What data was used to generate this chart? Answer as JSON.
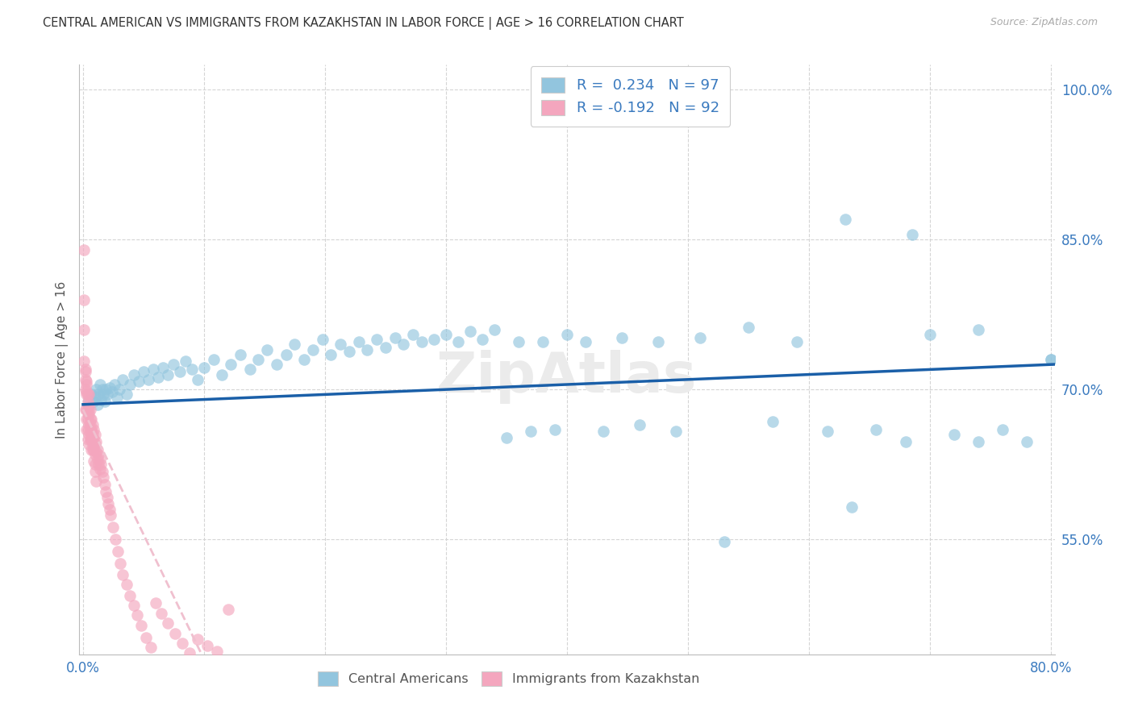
{
  "title": "CENTRAL AMERICAN VS IMMIGRANTS FROM KAZAKHSTAN IN LABOR FORCE | AGE > 16 CORRELATION CHART",
  "source": "Source: ZipAtlas.com",
  "ylabel": "In Labor Force | Age > 16",
  "x_min": -0.003,
  "x_max": 0.803,
  "y_min": 0.435,
  "y_max": 1.025,
  "y_ticks": [
    0.55,
    0.7,
    0.85,
    1.0
  ],
  "y_tick_labels": [
    "55.0%",
    "70.0%",
    "85.0%",
    "100.0%"
  ],
  "x_ticks": [
    0.0,
    0.1,
    0.2,
    0.3,
    0.4,
    0.5,
    0.6,
    0.7,
    0.8
  ],
  "x_tick_labels": [
    "0.0%",
    "",
    "",
    "",
    "",
    "",
    "",
    "",
    "80.0%"
  ],
  "color_blue": "#92c5de",
  "color_pink": "#f4a6be",
  "color_blue_line": "#1a5fa8",
  "color_pink_solid": "#e8607a",
  "color_pink_dash": "#f0c0cf",
  "watermark": "ZipAtlas",
  "blue_x": [
    0.005,
    0.007,
    0.009,
    0.01,
    0.011,
    0.012,
    0.013,
    0.014,
    0.015,
    0.016,
    0.017,
    0.018,
    0.019,
    0.02,
    0.022,
    0.024,
    0.026,
    0.028,
    0.03,
    0.033,
    0.036,
    0.039,
    0.042,
    0.046,
    0.05,
    0.054,
    0.058,
    0.062,
    0.066,
    0.07,
    0.075,
    0.08,
    0.085,
    0.09,
    0.095,
    0.1,
    0.108,
    0.115,
    0.122,
    0.13,
    0.138,
    0.145,
    0.152,
    0.16,
    0.168,
    0.175,
    0.183,
    0.19,
    0.198,
    0.205,
    0.213,
    0.22,
    0.228,
    0.235,
    0.243,
    0.25,
    0.258,
    0.265,
    0.273,
    0.28,
    0.29,
    0.3,
    0.31,
    0.32,
    0.33,
    0.34,
    0.35,
    0.36,
    0.37,
    0.38,
    0.39,
    0.4,
    0.415,
    0.43,
    0.445,
    0.46,
    0.475,
    0.49,
    0.51,
    0.53,
    0.55,
    0.57,
    0.59,
    0.615,
    0.635,
    0.655,
    0.68,
    0.7,
    0.72,
    0.74,
    0.76,
    0.78,
    0.8,
    0.63,
    0.685,
    0.74,
    0.8
  ],
  "blue_y": [
    0.69,
    0.695,
    0.688,
    0.693,
    0.7,
    0.685,
    0.695,
    0.705,
    0.69,
    0.7,
    0.695,
    0.688,
    0.7,
    0.695,
    0.702,
    0.698,
    0.705,
    0.692,
    0.7,
    0.71,
    0.695,
    0.705,
    0.715,
    0.708,
    0.718,
    0.71,
    0.72,
    0.712,
    0.722,
    0.715,
    0.725,
    0.718,
    0.728,
    0.72,
    0.71,
    0.722,
    0.73,
    0.715,
    0.725,
    0.735,
    0.72,
    0.73,
    0.74,
    0.725,
    0.735,
    0.745,
    0.73,
    0.74,
    0.75,
    0.735,
    0.745,
    0.738,
    0.748,
    0.74,
    0.75,
    0.742,
    0.752,
    0.745,
    0.755,
    0.748,
    0.75,
    0.755,
    0.748,
    0.758,
    0.75,
    0.76,
    0.652,
    0.748,
    0.658,
    0.748,
    0.66,
    0.755,
    0.748,
    0.658,
    0.752,
    0.665,
    0.748,
    0.658,
    0.752,
    0.548,
    0.762,
    0.668,
    0.748,
    0.658,
    0.582,
    0.66,
    0.648,
    0.755,
    0.655,
    0.648,
    0.66,
    0.648,
    0.73,
    0.87,
    0.855,
    0.76,
    0.73
  ],
  "pink_x": [
    0.001,
    0.001,
    0.001,
    0.002,
    0.002,
    0.002,
    0.002,
    0.003,
    0.003,
    0.003,
    0.003,
    0.003,
    0.004,
    0.004,
    0.004,
    0.004,
    0.004,
    0.005,
    0.005,
    0.005,
    0.005,
    0.005,
    0.005,
    0.006,
    0.006,
    0.006,
    0.006,
    0.007,
    0.007,
    0.007,
    0.007,
    0.008,
    0.008,
    0.008,
    0.009,
    0.009,
    0.009,
    0.01,
    0.01,
    0.01,
    0.01,
    0.011,
    0.011,
    0.012,
    0.012,
    0.013,
    0.013,
    0.014,
    0.014,
    0.015,
    0.016,
    0.017,
    0.018,
    0.019,
    0.02,
    0.021,
    0.022,
    0.023,
    0.025,
    0.027,
    0.029,
    0.031,
    0.033,
    0.036,
    0.039,
    0.042,
    0.045,
    0.048,
    0.052,
    0.056,
    0.06,
    0.065,
    0.07,
    0.076,
    0.082,
    0.088,
    0.095,
    0.103,
    0.111,
    0.12,
    0.001,
    0.002,
    0.003,
    0.003,
    0.004,
    0.005,
    0.006,
    0.007,
    0.008,
    0.009,
    0.01,
    0.011
  ],
  "pink_y": [
    0.84,
    0.79,
    0.76,
    0.72,
    0.71,
    0.7,
    0.68,
    0.705,
    0.695,
    0.68,
    0.67,
    0.66,
    0.695,
    0.68,
    0.67,
    0.66,
    0.65,
    0.695,
    0.685,
    0.675,
    0.665,
    0.655,
    0.645,
    0.68,
    0.67,
    0.66,
    0.65,
    0.67,
    0.66,
    0.65,
    0.64,
    0.665,
    0.655,
    0.645,
    0.66,
    0.65,
    0.64,
    0.655,
    0.645,
    0.635,
    0.625,
    0.648,
    0.638,
    0.64,
    0.63,
    0.635,
    0.625,
    0.63,
    0.62,
    0.625,
    0.618,
    0.612,
    0.605,
    0.598,
    0.592,
    0.586,
    0.58,
    0.574,
    0.562,
    0.55,
    0.538,
    0.526,
    0.515,
    0.505,
    0.494,
    0.484,
    0.474,
    0.464,
    0.452,
    0.442,
    0.486,
    0.476,
    0.466,
    0.456,
    0.446,
    0.436,
    0.45,
    0.444,
    0.438,
    0.48,
    0.728,
    0.718,
    0.708,
    0.698,
    0.688,
    0.678,
    0.665,
    0.652,
    0.64,
    0.628,
    0.618,
    0.608
  ]
}
